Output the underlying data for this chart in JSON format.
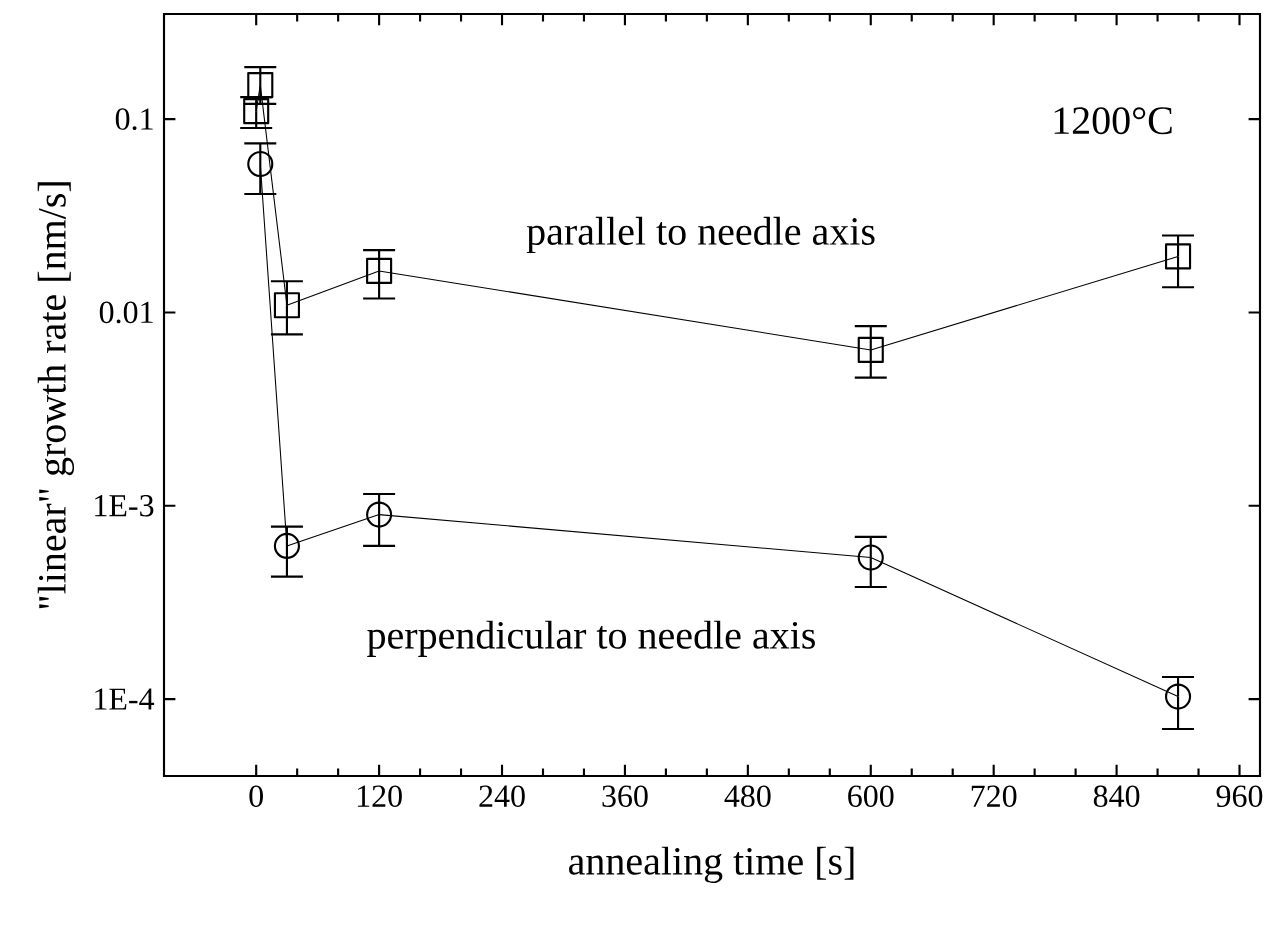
{
  "chart_data": {
    "type": "line",
    "xlabel": "annealing time [s]",
    "ylabel": "\"linear\" growth rate [nm/s]",
    "log": "y",
    "xlim": [
      -90,
      980
    ],
    "xticks": [
      0,
      120,
      240,
      360,
      480,
      600,
      720,
      840,
      960
    ],
    "ylim": [
      4e-05,
      0.35
    ],
    "yticks": [
      {
        "value": 0.1,
        "label": "0.1"
      },
      {
        "value": 0.01,
        "label": "0.01"
      },
      {
        "value": 0.001,
        "label": "1E-3"
      },
      {
        "value": 0.0001,
        "label": "1E-4"
      }
    ],
    "grid": false,
    "line_style": "solid",
    "annotations": [
      "1200°C"
    ],
    "series": [
      {
        "name": "parallel to needle axis",
        "color": "#000000",
        "marker": "square",
        "x": [
          0,
          4,
          30,
          120,
          600,
          900
        ],
        "values": [
          0.11,
          0.15,
          0.0109,
          0.0164,
          0.0064,
          0.0195
        ],
        "errors": [
          [
            0.09,
            0.13
          ],
          [
            0.12,
            0.186
          ],
          [
            0.0077,
            0.0145
          ],
          [
            0.0118,
            0.021
          ],
          [
            0.0046,
            0.0085
          ],
          [
            0.0135,
            0.025
          ]
        ]
      },
      {
        "name": "perpendicular to needle axis",
        "color": "#000000",
        "marker": "circle",
        "x": [
          4,
          30,
          120,
          600,
          900
        ],
        "values": [
          0.0586,
          0.00062,
          0.0009,
          0.00054,
          0.000103
        ],
        "errors": [
          [
            0.041,
            0.075
          ],
          [
            0.00043,
            0.00078
          ],
          [
            0.00062,
            0.00115
          ],
          [
            0.00038,
            0.00069
          ],
          [
            7e-05,
            0.00013
          ]
        ]
      }
    ]
  }
}
